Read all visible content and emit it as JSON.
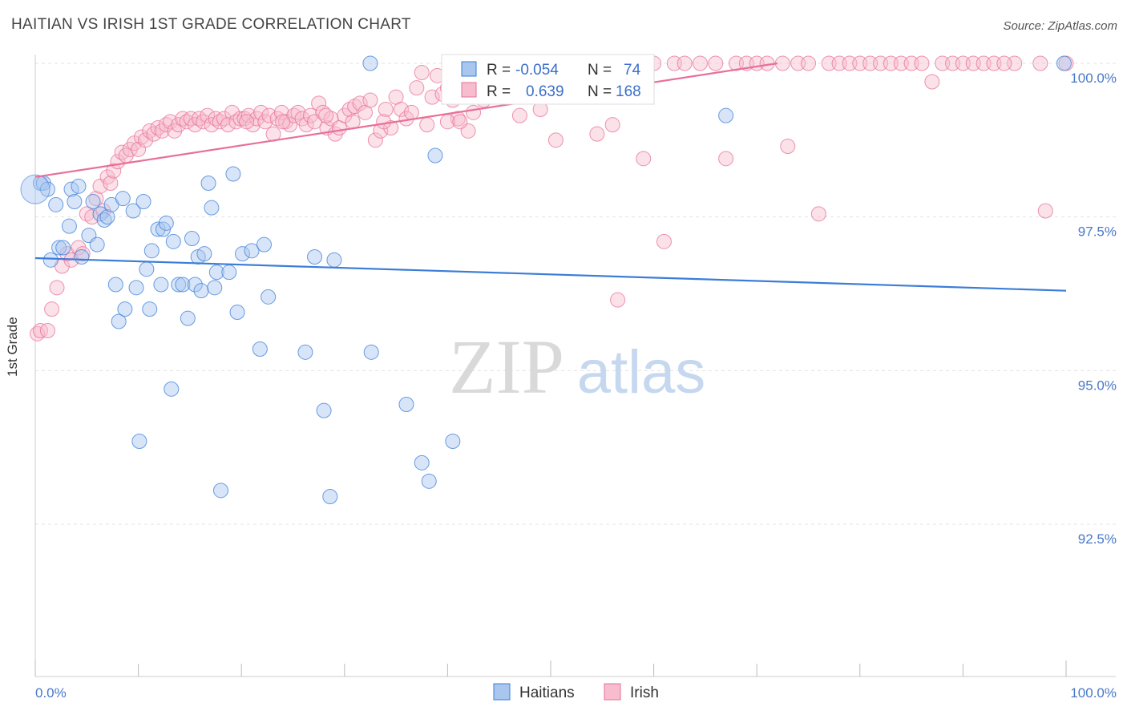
{
  "title": "HAITIAN VS IRISH 1ST GRADE CORRELATION CHART",
  "source": "Source: ZipAtlas.com",
  "watermark": {
    "zip": "ZIP",
    "atlas": "atlas"
  },
  "chart_data": {
    "type": "scatter",
    "ylabel": "1st Grade",
    "xlim": [
      0,
      100
    ],
    "ylim": [
      90.4,
      100.3
    ],
    "x_tick_labels": [
      "0.0%",
      "100.0%"
    ],
    "y_ticks": [
      92.5,
      95.0,
      97.5,
      100.0
    ],
    "y_tick_labels": [
      "92.5%",
      "95.0%",
      "97.5%",
      "100.0%"
    ],
    "grid": true,
    "legend_position": "top-center",
    "colors": {
      "haitians": "#3b7dd8",
      "irish": "#e8709a",
      "haitians_fill": "#a9c6ef",
      "irish_fill": "#f7bccd",
      "tick_text": "#4a78c8"
    },
    "stats": [
      {
        "r_label": "R =",
        "r": "-0.054",
        "n_label": "N =",
        "n": "74"
      },
      {
        "r_label": "R =",
        "r": "0.639",
        "n_label": "N =",
        "n": "168"
      }
    ],
    "series": [
      {
        "name": "Haitians",
        "trend": [
          [
            0,
            96.83
          ],
          [
            100,
            96.3
          ]
        ],
        "points": [
          [
            0.5,
            98.05
          ],
          [
            0.8,
            98.05
          ],
          [
            1.2,
            97.95
          ],
          [
            1.5,
            96.8
          ],
          [
            2.0,
            97.7
          ],
          [
            2.3,
            97.0
          ],
          [
            2.7,
            97.0
          ],
          [
            3.3,
            97.35
          ],
          [
            3.5,
            97.95
          ],
          [
            3.8,
            97.75
          ],
          [
            4.2,
            98.0
          ],
          [
            4.5,
            96.85
          ],
          [
            5.2,
            97.2
          ],
          [
            5.6,
            97.75
          ],
          [
            6.0,
            97.05
          ],
          [
            6.3,
            97.55
          ],
          [
            6.7,
            97.45
          ],
          [
            7.0,
            97.5
          ],
          [
            7.4,
            97.7
          ],
          [
            7.8,
            96.4
          ],
          [
            8.1,
            95.8
          ],
          [
            8.5,
            97.8
          ],
          [
            8.7,
            96.0
          ],
          [
            9.5,
            97.6
          ],
          [
            9.8,
            96.35
          ],
          [
            10.1,
            93.85
          ],
          [
            10.5,
            97.75
          ],
          [
            10.8,
            96.65
          ],
          [
            11.1,
            96.0
          ],
          [
            11.3,
            96.95
          ],
          [
            11.9,
            97.3
          ],
          [
            12.2,
            96.4
          ],
          [
            12.4,
            97.3
          ],
          [
            12.7,
            97.4
          ],
          [
            13.2,
            94.7
          ],
          [
            13.4,
            97.1
          ],
          [
            13.9,
            96.4
          ],
          [
            14.3,
            96.4
          ],
          [
            14.8,
            95.85
          ],
          [
            15.2,
            97.15
          ],
          [
            15.5,
            96.4
          ],
          [
            15.8,
            96.85
          ],
          [
            16.1,
            96.3
          ],
          [
            16.4,
            96.9
          ],
          [
            16.8,
            98.05
          ],
          [
            17.1,
            97.65
          ],
          [
            17.4,
            96.35
          ],
          [
            17.6,
            96.6
          ],
          [
            18.0,
            93.05
          ],
          [
            18.8,
            96.6
          ],
          [
            19.2,
            98.2
          ],
          [
            19.6,
            95.95
          ],
          [
            20.1,
            96.9
          ],
          [
            21.0,
            96.95
          ],
          [
            21.8,
            95.35
          ],
          [
            22.2,
            97.05
          ],
          [
            22.6,
            96.2
          ],
          [
            26.2,
            95.3
          ],
          [
            27.1,
            96.85
          ],
          [
            28.0,
            94.35
          ],
          [
            28.6,
            92.95
          ],
          [
            29.0,
            96.8
          ],
          [
            32.5,
            100.0
          ],
          [
            32.6,
            95.3
          ],
          [
            36.0,
            94.45
          ],
          [
            37.5,
            93.5
          ],
          [
            38.2,
            93.2
          ],
          [
            38.8,
            98.5
          ],
          [
            40.5,
            93.85
          ],
          [
            67.0,
            99.15
          ],
          [
            99.8,
            100.0
          ]
        ]
      },
      {
        "name": "Irish",
        "trend": [
          [
            0,
            98.15
          ],
          [
            72,
            100.0
          ]
        ],
        "points": [
          [
            0.2,
            95.6
          ],
          [
            0.5,
            95.65
          ],
          [
            1.2,
            95.65
          ],
          [
            1.6,
            96.0
          ],
          [
            2.1,
            96.35
          ],
          [
            2.6,
            96.7
          ],
          [
            3.1,
            96.9
          ],
          [
            3.5,
            96.8
          ],
          [
            4.2,
            97.0
          ],
          [
            4.6,
            96.9
          ],
          [
            5.0,
            97.55
          ],
          [
            5.5,
            97.5
          ],
          [
            5.9,
            97.8
          ],
          [
            6.3,
            98.0
          ],
          [
            6.6,
            97.6
          ],
          [
            7.0,
            98.15
          ],
          [
            7.3,
            98.05
          ],
          [
            7.6,
            98.25
          ],
          [
            8.0,
            98.4
          ],
          [
            8.4,
            98.55
          ],
          [
            8.8,
            98.5
          ],
          [
            9.2,
            98.6
          ],
          [
            9.6,
            98.7
          ],
          [
            10.0,
            98.6
          ],
          [
            10.3,
            98.8
          ],
          [
            10.7,
            98.75
          ],
          [
            11.1,
            98.9
          ],
          [
            11.5,
            98.85
          ],
          [
            11.9,
            98.95
          ],
          [
            12.3,
            98.9
          ],
          [
            12.7,
            99.0
          ],
          [
            13.1,
            99.05
          ],
          [
            13.5,
            98.9
          ],
          [
            13.9,
            99.0
          ],
          [
            14.3,
            99.1
          ],
          [
            14.7,
            99.05
          ],
          [
            15.1,
            99.1
          ],
          [
            15.5,
            99.0
          ],
          [
            15.9,
            99.1
          ],
          [
            16.3,
            99.05
          ],
          [
            16.7,
            99.15
          ],
          [
            17.1,
            99.0
          ],
          [
            17.5,
            99.1
          ],
          [
            17.9,
            99.05
          ],
          [
            18.3,
            99.1
          ],
          [
            18.7,
            99.0
          ],
          [
            19.1,
            99.2
          ],
          [
            19.5,
            99.05
          ],
          [
            19.9,
            99.1
          ],
          [
            20.3,
            99.1
          ],
          [
            20.7,
            99.15
          ],
          [
            21.1,
            99.0
          ],
          [
            21.5,
            99.1
          ],
          [
            21.9,
            99.2
          ],
          [
            22.3,
            99.05
          ],
          [
            22.7,
            99.15
          ],
          [
            23.1,
            98.85
          ],
          [
            23.5,
            99.1
          ],
          [
            23.9,
            99.2
          ],
          [
            24.3,
            99.05
          ],
          [
            24.7,
            99.0
          ],
          [
            25.1,
            99.15
          ],
          [
            25.5,
            99.2
          ],
          [
            25.9,
            99.1
          ],
          [
            26.3,
            99.0
          ],
          [
            26.7,
            99.15
          ],
          [
            27.1,
            99.05
          ],
          [
            27.5,
            99.35
          ],
          [
            27.9,
            99.2
          ],
          [
            28.3,
            98.95
          ],
          [
            28.7,
            99.1
          ],
          [
            29.1,
            98.85
          ],
          [
            29.5,
            98.95
          ],
          [
            30.0,
            99.15
          ],
          [
            30.5,
            99.25
          ],
          [
            31.0,
            99.3
          ],
          [
            31.5,
            99.35
          ],
          [
            32.0,
            99.2
          ],
          [
            32.5,
            99.4
          ],
          [
            33.0,
            98.75
          ],
          [
            33.5,
            98.9
          ],
          [
            34.0,
            99.25
          ],
          [
            34.5,
            98.95
          ],
          [
            35.0,
            99.45
          ],
          [
            35.5,
            99.25
          ],
          [
            36.0,
            99.1
          ],
          [
            36.5,
            99.2
          ],
          [
            37.0,
            99.6
          ],
          [
            37.5,
            99.85
          ],
          [
            38.0,
            99.0
          ],
          [
            38.5,
            99.45
          ],
          [
            39.0,
            99.8
          ],
          [
            39.5,
            99.5
          ],
          [
            40.0,
            99.6
          ],
          [
            40.5,
            99.4
          ],
          [
            41.0,
            99.1
          ],
          [
            41.5,
            99.9
          ],
          [
            42.0,
            98.9
          ],
          [
            42.5,
            99.2
          ],
          [
            43.0,
            99.75
          ],
          [
            43.5,
            99.4
          ],
          [
            44.0,
            99.85
          ],
          [
            45.0,
            100.0
          ],
          [
            46.0,
            99.65
          ],
          [
            47.0,
            99.15
          ],
          [
            47.5,
            99.8
          ],
          [
            48.0,
            100.0
          ],
          [
            49.0,
            99.25
          ],
          [
            50.0,
            100.0
          ],
          [
            50.5,
            98.75
          ],
          [
            51.0,
            99.55
          ],
          [
            52.0,
            99.6
          ],
          [
            53.0,
            99.8
          ],
          [
            54.0,
            100.0
          ],
          [
            54.5,
            98.85
          ],
          [
            55.5,
            99.8
          ],
          [
            56.0,
            99.0
          ],
          [
            57.0,
            99.7
          ],
          [
            58.0,
            100.0
          ],
          [
            59.0,
            98.45
          ],
          [
            60.0,
            100.0
          ],
          [
            61.0,
            97.1
          ],
          [
            62.0,
            100.0
          ],
          [
            63.0,
            100.0
          ],
          [
            64.5,
            100.0
          ],
          [
            66.0,
            100.0
          ],
          [
            67.0,
            98.45
          ],
          [
            68.0,
            100.0
          ],
          [
            69.0,
            100.0
          ],
          [
            70.0,
            100.0
          ],
          [
            71.0,
            100.0
          ],
          [
            72.5,
            100.0
          ],
          [
            73.0,
            98.65
          ],
          [
            74.0,
            100.0
          ],
          [
            75.0,
            100.0
          ],
          [
            76.0,
            97.55
          ],
          [
            77.0,
            100.0
          ],
          [
            78.0,
            100.0
          ],
          [
            79.0,
            100.0
          ],
          [
            80.0,
            100.0
          ],
          [
            81.0,
            100.0
          ],
          [
            82.0,
            100.0
          ],
          [
            83.0,
            100.0
          ],
          [
            84.0,
            100.0
          ],
          [
            85.0,
            100.0
          ],
          [
            86.0,
            100.0
          ],
          [
            87.0,
            99.7
          ],
          [
            88.0,
            100.0
          ],
          [
            89.0,
            100.0
          ],
          [
            90.0,
            100.0
          ],
          [
            91.0,
            100.0
          ],
          [
            92.0,
            100.0
          ],
          [
            93.0,
            100.0
          ],
          [
            95.0,
            100.0
          ],
          [
            97.5,
            100.0
          ],
          [
            94.0,
            100.0
          ],
          [
            98.0,
            97.6
          ],
          [
            100.0,
            100.0
          ],
          [
            56.5,
            96.15
          ],
          [
            20.5,
            99.05
          ],
          [
            24.0,
            99.05
          ],
          [
            28.2,
            99.15
          ],
          [
            30.8,
            99.05
          ],
          [
            33.8,
            99.05
          ],
          [
            40.0,
            99.05
          ],
          [
            41.2,
            99.05
          ]
        ]
      }
    ]
  },
  "bottom_legend": {
    "haitians": "Haitians",
    "irish": "Irish"
  }
}
